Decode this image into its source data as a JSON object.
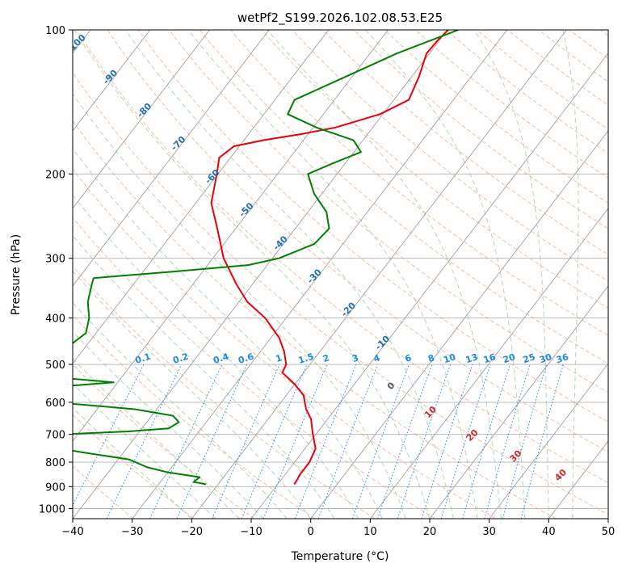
{
  "chart_data": {
    "type": "line",
    "title": "wetPf2_S199.2026.102.08.53.E25",
    "xlabel": "Temperature (°C)",
    "ylabel": "Pressure (hPa)",
    "xlim": [
      -40,
      50
    ],
    "ylim": [
      1050,
      100
    ],
    "y_scale": "log",
    "skew": true,
    "grid": true,
    "x_ticks": [
      -40,
      -30,
      -20,
      -10,
      0,
      10,
      20,
      30,
      40,
      50
    ],
    "y_ticks": [
      1000,
      900,
      800,
      700,
      600,
      500,
      400,
      300,
      200,
      100
    ],
    "series": [
      {
        "color": "#e8000b",
        "values_pressure": [
          890,
          870,
          850,
          800,
          750,
          700,
          650,
          620,
          580,
          550,
          520,
          500,
          470,
          440,
          400,
          370,
          340,
          300,
          260,
          230,
          200,
          185,
          175,
          170,
          165,
          160,
          150,
          140,
          125,
          112,
          105,
          100
        ],
        "values_temperature": [
          -7.2,
          -7.3,
          -7.5,
          -7.5,
          -8.2,
          -10.5,
          -12.8,
          -14.9,
          -17.1,
          -20.0,
          -23.6,
          -24.0,
          -26.0,
          -28.6,
          -33.5,
          -38.6,
          -42.7,
          -48.2,
          -53.1,
          -57.4,
          -60.2,
          -61.9,
          -60.9,
          -56.7,
          -51.1,
          -46.3,
          -40.5,
          -37.5,
          -38.8,
          -40.5,
          -40.3,
          -39.9
        ]
      },
      {
        "color": "#008000",
        "values_pressure": [
          890,
          880,
          860,
          840,
          820,
          790,
          760,
          730,
          715,
          712,
          712,
          710,
          700,
          690,
          680,
          660,
          640,
          620,
          600,
          590,
          570,
          560,
          545,
          530,
          520,
          500,
          480,
          460,
          430,
          400,
          370,
          340,
          330,
          320,
          310,
          300,
          280,
          260,
          240,
          220,
          200,
          190,
          180,
          170,
          160,
          150,
          140,
          125,
          112,
          100
        ],
        "values_temperature": [
          -22.0,
          -24.4,
          -24.0,
          -30.0,
          -34.1,
          -38.1,
          -47.9,
          -56.3,
          -60.0,
          -65.2,
          -65.7,
          -60.2,
          -52.9,
          -41.9,
          -35.5,
          -34.6,
          -36.4,
          -43.7,
          -57.9,
          -70.7,
          -69.4,
          -62.2,
          -50.7,
          -62.6,
          -71.4,
          -71.4,
          -68.5,
          -63.0,
          -61.7,
          -63.1,
          -65.4,
          -67.0,
          -67.5,
          -55.0,
          -43.2,
          -38.9,
          -34.8,
          -34.3,
          -36.9,
          -41.3,
          -44.9,
          -42.1,
          -38.8,
          -41.6,
          -49.4,
          -56.0,
          -56.7,
          -51.0,
          -45.5,
          -38.2
        ]
      }
    ],
    "dry_adiabat_labels": [
      "-100",
      "-90",
      "-80",
      "-70",
      "-60",
      "-50",
      "-40",
      "-30",
      "-20",
      "-10"
    ],
    "moist_adiabat_labels": [
      "0",
      "10",
      "20",
      "30",
      "40"
    ],
    "mixing_ratio_labels": [
      "0.1",
      "0.2",
      "0.4",
      "0.6",
      "1",
      "1.5",
      "2",
      "3",
      "4",
      "6",
      "8",
      "10",
      "13",
      "16",
      "20",
      "25",
      "30",
      "36"
    ],
    "colors": {
      "isotherm": "#a0a0a0",
      "dry_adiabat": "#f4a582",
      "moist_adiabat": "#9fcd9f",
      "mixing_ratio": "#1e88e5",
      "isobar": "#b0b0b0",
      "dry_label": "#1f6fb0",
      "moist_label": "#d62728"
    }
  }
}
